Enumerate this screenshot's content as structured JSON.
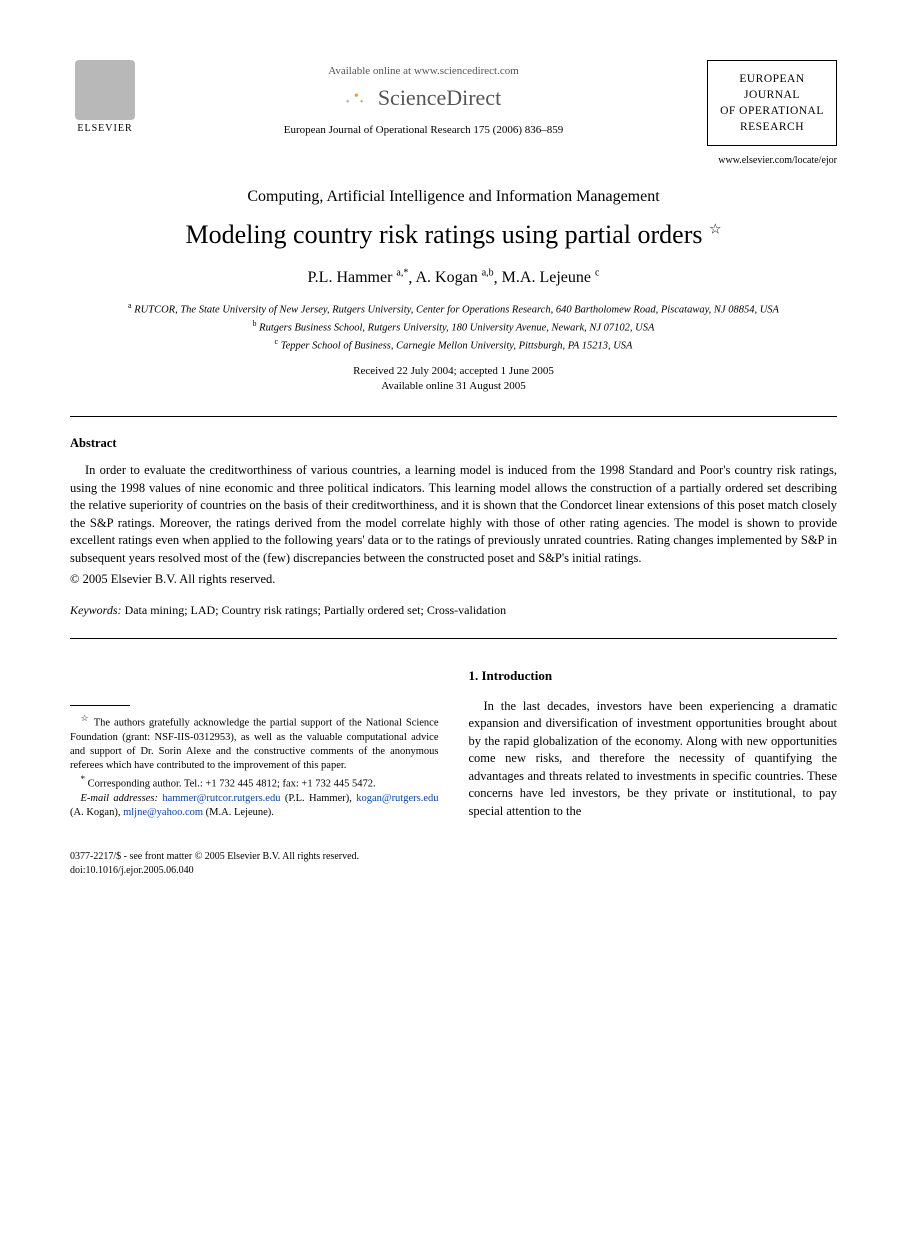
{
  "header": {
    "publisher_name": "ELSEVIER",
    "available_text": "Available online at www.sciencedirect.com",
    "platform_name": "ScienceDirect",
    "citation": "European Journal of Operational Research 175 (2006) 836–859",
    "journal_box": {
      "line1": "EUROPEAN",
      "line2": "JOURNAL",
      "line3": "OF OPERATIONAL",
      "line4": "RESEARCH"
    },
    "journal_url": "www.elsevier.com/locate/ejor"
  },
  "paper": {
    "category": "Computing, Artificial Intelligence and Information Management",
    "title": "Modeling country risk ratings using partial orders",
    "title_marker": "☆",
    "authors": [
      {
        "name": "P.L. Hammer",
        "marks": "a,*"
      },
      {
        "name": "A. Kogan",
        "marks": "a,b"
      },
      {
        "name": "M.A. Lejeune",
        "marks": "c"
      }
    ],
    "affiliations": [
      {
        "mark": "a",
        "text": "RUTCOR, The State University of New Jersey, Rutgers University, Center for Operations Research, 640 Bartholomew Road, Piscataway, NJ 08854, USA"
      },
      {
        "mark": "b",
        "text": "Rutgers Business School, Rutgers University, 180 University Avenue, Newark, NJ 07102, USA"
      },
      {
        "mark": "c",
        "text": "Tepper School of Business, Carnegie Mellon University, Pittsburgh, PA 15213, USA"
      }
    ],
    "received": "Received 22 July 2004; accepted 1 June 2005",
    "available": "Available online 31 August 2005"
  },
  "abstract": {
    "heading": "Abstract",
    "text": "In order to evaluate the creditworthiness of various countries, a learning model is induced from the 1998 Standard and Poor's country risk ratings, using the 1998 values of nine economic and three political indicators. This learning model allows the construction of a partially ordered set describing the relative superiority of countries on the basis of their creditworthiness, and it is shown that the Condorcet linear extensions of this poset match closely the S&P ratings. Moreover, the ratings derived from the model correlate highly with those of other rating agencies. The model is shown to provide excellent ratings even when applied to the following years' data or to the ratings of previously unrated countries. Rating changes implemented by S&P in subsequent years resolved most of the (few) discrepancies between the constructed poset and S&P's initial ratings.",
    "copyright": "© 2005 Elsevier B.V. All rights reserved."
  },
  "keywords": {
    "label": "Keywords:",
    "text": "Data mining; LAD; Country risk ratings; Partially ordered set; Cross-validation"
  },
  "footnotes": {
    "ack": "The authors gratefully acknowledge the partial support of the National Science Foundation (grant: NSF-IIS-0312953), as well as the valuable computational advice and support of Dr. Sorin Alexe and the constructive comments of the anonymous referees which have contributed to the improvement of this paper.",
    "corr_label": "Corresponding author. Tel.: +1 732 445 4812; fax: +1 732 445 5472.",
    "email_label": "E-mail addresses:",
    "emails": [
      {
        "addr": "hammer@rutcor.rutgers.edu",
        "who": "(P.L. Hammer)"
      },
      {
        "addr": "kogan@rutgers.edu",
        "who": "(A. Kogan)"
      },
      {
        "addr": "mljne@yahoo.com",
        "who": "(M.A. Lejeune)"
      }
    ]
  },
  "intro": {
    "heading": "1. Introduction",
    "para1": "In the last decades, investors have been experiencing a dramatic expansion and diversification of investment opportunities brought about by the rapid globalization of the economy. Along with new opportunities come new risks, and therefore the necessity of quantifying the advantages and threats related to investments in specific countries. These concerns have led investors, be they private or institutional, to pay special attention to the"
  },
  "footer": {
    "front_matter": "0377-2217/$ - see front matter © 2005 Elsevier B.V. All rights reserved.",
    "doi": "doi:10.1016/j.ejor.2005.06.040"
  },
  "colors": {
    "text": "#000000",
    "link": "#0645ad",
    "background": "#ffffff",
    "muted": "#555555"
  },
  "typography": {
    "body_family": "Times New Roman",
    "title_size_pt": 26,
    "category_size_pt": 16,
    "author_size_pt": 16,
    "body_size_pt": 12.5,
    "footnote_size_pt": 10.5
  }
}
